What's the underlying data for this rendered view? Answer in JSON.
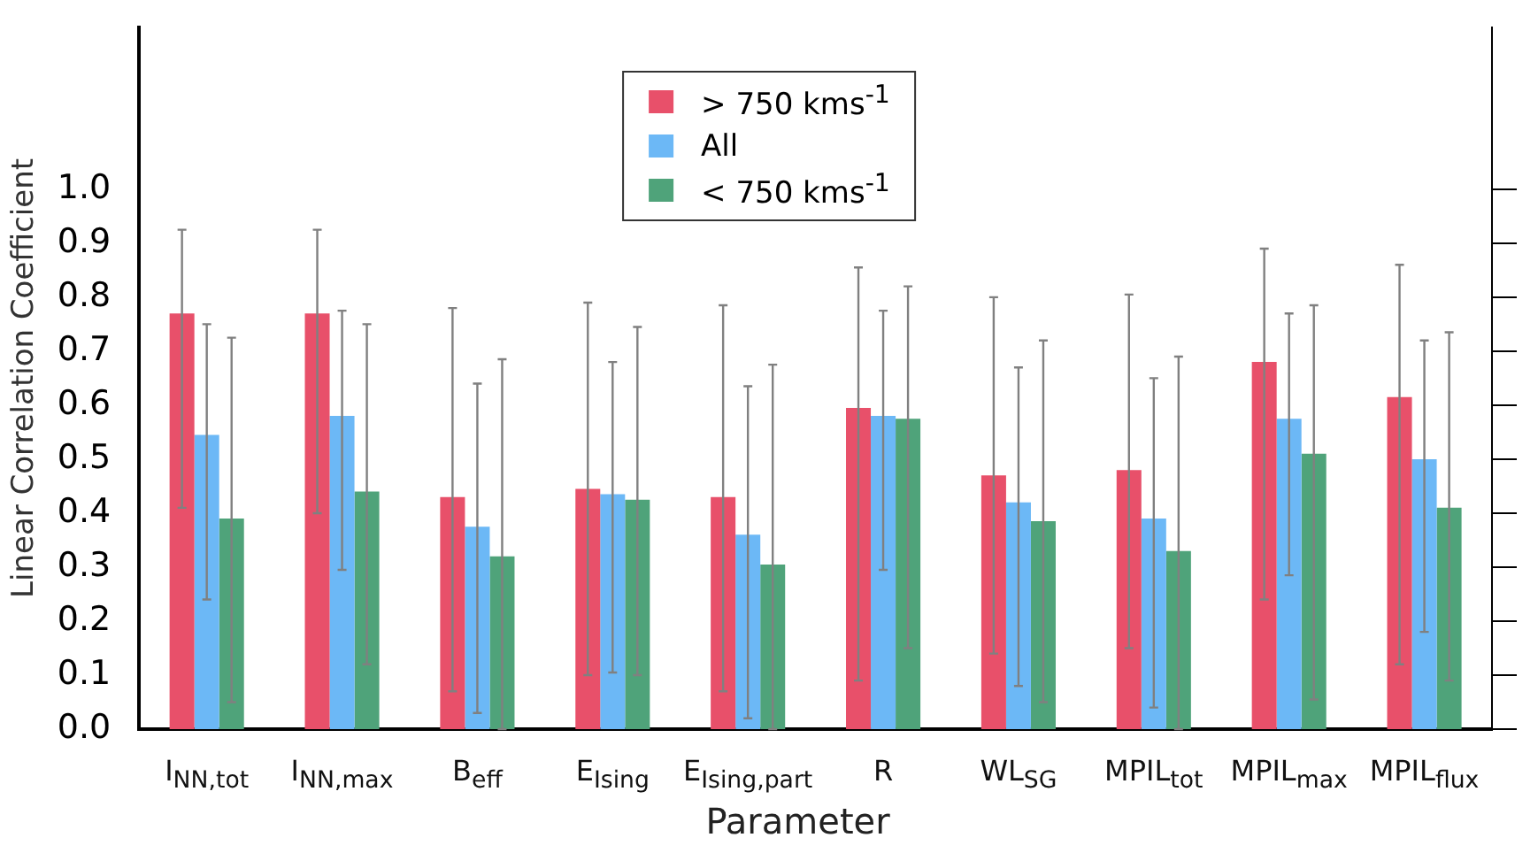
{
  "chart_data": {
    "type": "bar",
    "xlabel": "Parameter",
    "ylabel": "Linear Correlation Coefficient",
    "categories": [
      "I$_{NN,tot}$",
      "I$_{NN,max}$",
      "B$_{eff}$",
      "E$_{Ising}$",
      "E$_{Ising,part}$",
      "R",
      "WL$_{SG}$",
      "MPIL$_{tot}$",
      "MPIL$_{max}$",
      "MPIL$_{flux}$"
    ],
    "series": [
      {
        "name": "> 750 kms$^{-1}$",
        "color": "#e8506a",
        "values": [
          0.77,
          0.77,
          0.43,
          0.445,
          0.43,
          0.595,
          0.47,
          0.48,
          0.68,
          0.615
        ],
        "errors": [
          [
            0.41,
            0.925
          ],
          [
            0.4,
            0.925
          ],
          [
            0.07,
            0.78
          ],
          [
            0.1,
            0.79
          ],
          [
            0.07,
            0.785
          ],
          [
            0.09,
            0.855
          ],
          [
            0.14,
            0.8
          ],
          [
            0.15,
            0.805
          ],
          [
            0.24,
            0.89
          ],
          [
            0.12,
            0.86
          ]
        ]
      },
      {
        "name": "All",
        "color": "#6cb8f6",
        "values": [
          0.545,
          0.58,
          0.375,
          0.435,
          0.36,
          0.58,
          0.42,
          0.39,
          0.575,
          0.5
        ],
        "errors": [
          [
            0.24,
            0.75
          ],
          [
            0.295,
            0.775
          ],
          [
            0.03,
            0.64
          ],
          [
            0.105,
            0.68
          ],
          [
            0.02,
            0.635
          ],
          [
            0.295,
            0.775
          ],
          [
            0.08,
            0.67
          ],
          [
            0.04,
            0.65
          ],
          [
            0.285,
            0.77
          ],
          [
            0.18,
            0.72
          ]
        ]
      },
      {
        "name": "< 750 kms$^{-1}$",
        "color": "#4fa37a",
        "values": [
          0.39,
          0.44,
          0.32,
          0.425,
          0.305,
          0.575,
          0.385,
          0.33,
          0.51,
          0.41
        ],
        "errors": [
          [
            0.05,
            0.725
          ],
          [
            0.12,
            0.75
          ],
          [
            0.0,
            0.685
          ],
          [
            0.1,
            0.745
          ],
          [
            0.0,
            0.675
          ],
          [
            0.15,
            0.82
          ],
          [
            0.05,
            0.72
          ],
          [
            0.0,
            0.69
          ],
          [
            0.055,
            0.785
          ],
          [
            0.09,
            0.735
          ]
        ]
      }
    ],
    "ylim": [
      0,
      1.3
    ],
    "yticks": [
      {
        "value": 0,
        "label": "0.0"
      },
      0.1,
      0.2,
      0.3,
      0.4,
      0.5,
      0.6,
      0.7,
      0.8,
      0.9,
      {
        "value": 1,
        "label": "1.0"
      }
    ],
    "legend": "top",
    "grid": false
  }
}
